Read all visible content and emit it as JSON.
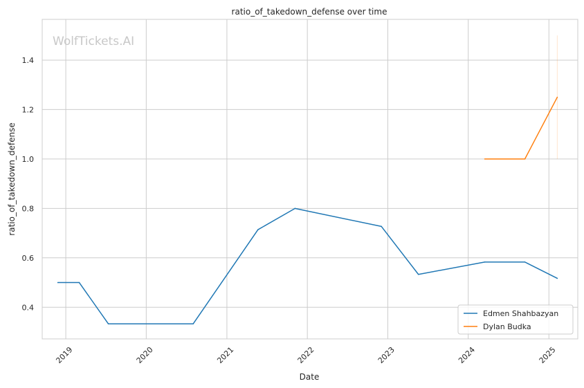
{
  "chart_data": {
    "type": "line",
    "title": "ratio_of_takedown_defense over time",
    "xlabel": "Date",
    "ylabel": "ratio_of_takedown_defense",
    "watermark": "WolfTickets.AI",
    "xlim": [
      "2018-09-16",
      "2025-05-12"
    ],
    "ylim": [
      0.272,
      1.565
    ],
    "x_ticks": [
      "2019",
      "2020",
      "2021",
      "2022",
      "2023",
      "2024",
      "2025"
    ],
    "y_ticks": [
      "0.4",
      "0.6",
      "0.8",
      "1.0",
      "1.2",
      "1.4"
    ],
    "grid": true,
    "legend_position": "bottom-right",
    "series": [
      {
        "name": "Edmen Shahbazyan",
        "color": "#1f77b4",
        "points": [
          {
            "x": "2018-11-26",
            "y": 0.5
          },
          {
            "x": "2019-03-03",
            "y": 0.5
          },
          {
            "x": "2019-07-13",
            "y": 0.333
          },
          {
            "x": "2020-08-01",
            "y": 0.333
          },
          {
            "x": "2021-05-22",
            "y": 0.714
          },
          {
            "x": "2021-11-06",
            "y": 0.8
          },
          {
            "x": "2022-12-03",
            "y": 0.727
          },
          {
            "x": "2023-05-20",
            "y": 0.533
          },
          {
            "x": "2024-03-16",
            "y": 0.583
          },
          {
            "x": "2024-09-14",
            "y": 0.583
          },
          {
            "x": "2025-02-08",
            "y": 0.517
          }
        ]
      },
      {
        "name": "Dylan Budka",
        "color": "#ff7f0e",
        "points": [
          {
            "x": "2024-03-16",
            "y": 1.0
          },
          {
            "x": "2024-09-14",
            "y": 1.0
          },
          {
            "x": "2025-02-08",
            "y": 1.25
          }
        ],
        "range_band": {
          "x": "2025-02-08",
          "y_range": [
            1.0,
            1.5
          ]
        }
      }
    ]
  }
}
